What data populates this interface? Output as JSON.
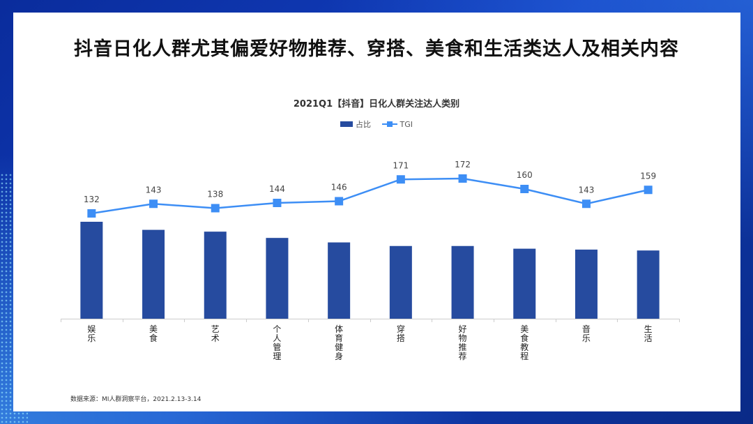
{
  "title": "抖音日化人群尤其偏爱好物推荐、穿搭、美食和生活类达人及相关内容",
  "source": "数据来源：MI人群洞察平台，2021.2.13-3.14",
  "colors": {
    "bar": "#264b9f",
    "line": "#3d8ef5",
    "axis": "#cccccc"
  },
  "chart_data": {
    "type": "bar",
    "title": "2021Q1【抖音】日化人群关注达人类别",
    "legend_position": "top-center",
    "categories": [
      "娱乐",
      "美食",
      "艺术",
      "个人管理",
      "体育健身",
      "穿搭",
      "好物推荐",
      "美食教程",
      "音乐",
      "生活"
    ],
    "series": [
      {
        "name": "占比",
        "type": "bar",
        "values": [
          10.8,
          9.9,
          9.7,
          9.0,
          8.5,
          8.1,
          8.1,
          7.8,
          7.7,
          7.6
        ]
      },
      {
        "name": "TGI",
        "type": "line",
        "marker": "square",
        "values": [
          132,
          143,
          138,
          144,
          146,
          171,
          172,
          160,
          143,
          159
        ]
      }
    ]
  }
}
